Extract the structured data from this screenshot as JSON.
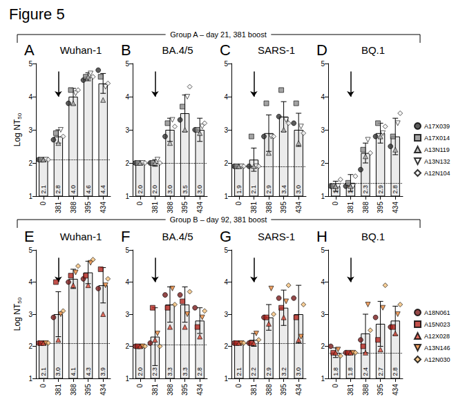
{
  "title": "Figure 5",
  "groups": [
    {
      "title": "Group A – day 21, 381 boost",
      "panels": [
        "A",
        "B",
        "C",
        "D"
      ]
    },
    {
      "title": "Group B – day 92, 381 boost",
      "panels": [
        "E",
        "F",
        "G",
        "H"
      ]
    }
  ],
  "chart_data": [
    {
      "type": "bar",
      "panel": "A",
      "title": "Wuhan-1",
      "y_label": "Log NT50",
      "categories": [
        "0",
        "381",
        "388",
        "395",
        "434"
      ],
      "values": [
        2.1,
        2.8,
        4.0,
        4.6,
        4.4
      ],
      "value_labels": [
        "2.1",
        "2.8",
        "4.0",
        "4.6",
        "4.4"
      ],
      "errors": [
        0.05,
        0.2,
        0.25,
        0.12,
        0.3
      ],
      "threshold": 2.1,
      "color": "#ebebeb",
      "ylim": [
        1,
        5
      ],
      "yticks": [
        1,
        2,
        3,
        4,
        5
      ],
      "grid": false,
      "data_labels": true,
      "legend": "right",
      "annotations": [
        {
          "type": "arrow",
          "x": "381"
        }
      ],
      "series": [
        {
          "name": "A17X039",
          "color": "#333333",
          "marker": "circle",
          "values": [
            2.1,
            2.7,
            3.8,
            4.5,
            4.8
          ]
        },
        {
          "name": "A17X014",
          "color": "#8c8c8c",
          "marker": "square",
          "values": [
            2.1,
            2.9,
            4.2,
            4.6,
            4.6
          ]
        },
        {
          "name": "A13N119",
          "color": "#b5b5b5",
          "marker": "triangle",
          "values": [
            2.1,
            2.6,
            3.8,
            4.6,
            3.9
          ]
        },
        {
          "name": "A13N132",
          "color": "#ffffff",
          "marker": "triangle-down",
          "values": [
            2.1,
            3.0,
            4.1,
            4.7,
            4.3
          ]
        },
        {
          "name": "A12N104",
          "color": "#f2f2f2",
          "marker": "diamond",
          "values": [
            2.1,
            2.8,
            4.2,
            4.6,
            4.4
          ]
        }
      ]
    },
    {
      "type": "bar",
      "panel": "B",
      "title": "BA.4/5",
      "categories": [
        "0",
        "381",
        "388",
        "395",
        "434"
      ],
      "values": [
        2.0,
        2.0,
        3.0,
        3.5,
        3.0
      ],
      "value_labels": [
        "2.0",
        "2.0",
        "3.0",
        "3.5",
        "3.0"
      ],
      "errors": [
        0.05,
        0.1,
        0.35,
        0.55,
        0.35
      ],
      "threshold": 2.0,
      "color": "#ebebeb",
      "ylim": [
        1,
        5
      ],
      "yticks": [
        1,
        2,
        3,
        4,
        5
      ],
      "grid": false,
      "data_labels": true,
      "legend": "right",
      "annotations": [
        {
          "type": "arrow",
          "x": "381"
        }
      ],
      "series": [
        {
          "name": "A17X039",
          "color": "#333333",
          "marker": "circle",
          "values": [
            2.0,
            2.0,
            2.8,
            3.3,
            3.0
          ]
        },
        {
          "name": "A17X014",
          "color": "#8c8c8c",
          "marker": "square",
          "values": [
            2.0,
            2.0,
            3.2,
            3.7,
            3.0
          ]
        },
        {
          "name": "A13N119",
          "color": "#b5b5b5",
          "marker": "triangle",
          "values": [
            2.0,
            2.0,
            2.6,
            3.0,
            2.9
          ]
        },
        {
          "name": "A13N132",
          "color": "#ffffff",
          "marker": "triangle-down",
          "values": [
            2.0,
            2.1,
            3.3,
            4.0,
            3.1
          ]
        },
        {
          "name": "A12N104",
          "color": "#f2f2f2",
          "marker": "diamond",
          "values": [
            2.0,
            2.0,
            3.1,
            4.3,
            3.2
          ]
        }
      ]
    },
    {
      "type": "bar",
      "panel": "C",
      "title": "SARS-1",
      "categories": [
        "0",
        "381",
        "388",
        "395",
        "434"
      ],
      "values": [
        1.9,
        2.1,
        2.9,
        3.4,
        3.0
      ],
      "value_labels": [
        "1.9",
        "2.1",
        "2.9",
        "3.4",
        "3.0"
      ],
      "errors": [
        0.05,
        0.35,
        0.55,
        0.45,
        0.5
      ],
      "threshold": 1.9,
      "color": "#ebebeb",
      "ylim": [
        1,
        5
      ],
      "yticks": [
        1,
        2,
        3,
        4,
        5
      ],
      "grid": false,
      "data_labels": true,
      "legend": "right",
      "annotations": [
        {
          "type": "arrow",
          "x": "381"
        }
      ],
      "series": [
        {
          "name": "A17X039",
          "color": "#333333",
          "marker": "circle",
          "values": [
            1.9,
            1.9,
            2.8,
            3.4,
            3.2
          ]
        },
        {
          "name": "A17X014",
          "color": "#8c8c8c",
          "marker": "square",
          "values": [
            1.9,
            2.8,
            3.8,
            4.2,
            3.8
          ]
        },
        {
          "name": "A13N119",
          "color": "#b5b5b5",
          "marker": "triangle",
          "values": [
            1.9,
            1.9,
            2.3,
            3.0,
            2.6
          ]
        },
        {
          "name": "A13N132",
          "color": "#ffffff",
          "marker": "triangle-down",
          "values": [
            1.9,
            1.9,
            2.8,
            3.3,
            3.1
          ]
        },
        {
          "name": "A12N104",
          "color": "#f2f2f2",
          "marker": "diamond",
          "values": [
            1.9,
            1.9,
            2.8,
            3.2,
            2.9
          ]
        }
      ]
    },
    {
      "type": "bar",
      "panel": "D",
      "title": "BQ.1",
      "categories": [
        "0",
        "381",
        "388",
        "395",
        "434"
      ],
      "values": [
        1.3,
        1.4,
        2.3,
        2.9,
        2.8
      ],
      "value_labels": [
        "1.3",
        "1.4",
        "2.3",
        "2.9",
        "2.8"
      ],
      "errors": [
        0.15,
        0.25,
        0.3,
        0.3,
        0.55
      ],
      "threshold": 1.4,
      "color": "#ebebeb",
      "ylim": [
        1,
        5
      ],
      "yticks": [
        1,
        2,
        3,
        4,
        5
      ],
      "grid": false,
      "data_labels": true,
      "legend": "right",
      "annotations": [
        {
          "type": "arrow",
          "x": "381"
        }
      ],
      "series": [
        {
          "name": "A17X039",
          "color": "#333333",
          "marker": "circle",
          "values": [
            1.3,
            1.3,
            1.8,
            2.8,
            2.5
          ]
        },
        {
          "name": "A17X014",
          "color": "#8c8c8c",
          "marker": "square",
          "values": [
            1.3,
            1.4,
            2.4,
            3.2,
            2.8
          ]
        },
        {
          "name": "A13N119",
          "color": "#b5b5b5",
          "marker": "triangle",
          "values": [
            1.3,
            1.3,
            2.2,
            2.8,
            2.4
          ]
        },
        {
          "name": "A13N132",
          "color": "#ffffff",
          "marker": "triangle-down",
          "values": [
            1.3,
            1.3,
            2.7,
            2.9,
            3.2
          ]
        },
        {
          "name": "A12N104",
          "color": "#f2f2f2",
          "marker": "diamond",
          "values": [
            1.5,
            1.6,
            2.3,
            3.1,
            3.5
          ]
        }
      ]
    },
    {
      "type": "bar",
      "panel": "E",
      "title": "Wuhan-1",
      "y_label": "Log NT50",
      "categories": [
        "0",
        "381",
        "388",
        "395",
        "434"
      ],
      "values": [
        2.1,
        3.0,
        4.1,
        4.3,
        3.9
      ],
      "value_labels": [
        "2.1",
        "3.0",
        "4.1",
        "4.3",
        "3.9"
      ],
      "errors": [
        0.05,
        0.7,
        0.3,
        0.35,
        0.55
      ],
      "threshold": 2.1,
      "color": "#ebebeb",
      "ylim": [
        1,
        5
      ],
      "yticks": [
        1,
        2,
        3,
        4,
        5
      ],
      "grid": false,
      "data_labels": true,
      "legend": "right",
      "annotations": [
        {
          "type": "arrow",
          "x": "381"
        }
      ],
      "series": [
        {
          "name": "A18N061",
          "color": "#7a1c1c",
          "marker": "circle",
          "values": [
            2.1,
            2.9,
            4.0,
            4.1,
            3.8
          ]
        },
        {
          "name": "A15N023",
          "color": "#b3261e",
          "marker": "square",
          "values": [
            2.1,
            4.0,
            4.2,
            4.2,
            4.4
          ]
        },
        {
          "name": "A12X028",
          "color": "#dd4b39",
          "marker": "triangle",
          "values": [
            2.1,
            2.2,
            3.9,
            3.9,
            3.0
          ]
        },
        {
          "name": "A13N146",
          "color": "#ec8a3c",
          "marker": "triangle-down",
          "values": [
            2.1,
            3.0,
            4.3,
            4.6,
            3.9
          ]
        },
        {
          "name": "A12N030",
          "color": "#f6c27a",
          "marker": "diamond",
          "values": [
            2.1,
            3.1,
            4.5,
            4.7,
            4.1
          ]
        }
      ]
    },
    {
      "type": "bar",
      "panel": "F",
      "title": "BA.4/5",
      "categories": [
        "0",
        "381",
        "388",
        "395",
        "434"
      ],
      "values": [
        2.0,
        2.3,
        3.3,
        3.3,
        2.8
      ],
      "value_labels": [
        "2.0",
        "2.3",
        "3.3",
        "3.3",
        "2.8"
      ],
      "errors": [
        0.05,
        0.9,
        0.55,
        0.55,
        0.4
      ],
      "threshold": 2.05,
      "color": "#ebebeb",
      "ylim": [
        1,
        5
      ],
      "yticks": [
        1,
        2,
        3,
        4,
        5
      ],
      "grid": false,
      "data_labels": true,
      "legend": "right",
      "annotations": [
        {
          "type": "arrow",
          "x": "381"
        }
      ],
      "series": [
        {
          "name": "A18N061",
          "color": "#7a1c1c",
          "marker": "circle",
          "values": [
            2.0,
            2.1,
            3.6,
            3.6,
            3.2
          ]
        },
        {
          "name": "A15N023",
          "color": "#b3261e",
          "marker": "square",
          "values": [
            2.0,
            3.2,
            3.2,
            3.4,
            2.6
          ]
        },
        {
          "name": "A12X028",
          "color": "#dd4b39",
          "marker": "triangle",
          "values": [
            2.0,
            2.2,
            2.6,
            2.6,
            2.3
          ]
        },
        {
          "name": "A13N146",
          "color": "#ec8a3c",
          "marker": "triangle-down",
          "values": [
            2.0,
            2.4,
            3.8,
            3.0,
            2.9
          ]
        },
        {
          "name": "A12N030",
          "color": "#f6c27a",
          "marker": "diamond",
          "values": [
            2.0,
            2.0,
            3.3,
            3.7,
            3.1
          ]
        }
      ]
    },
    {
      "type": "bar",
      "panel": "G",
      "title": "SARS-1",
      "categories": [
        "0",
        "381",
        "388",
        "395",
        "434"
      ],
      "values": [
        2.1,
        2.2,
        2.9,
        3.2,
        3.0
      ],
      "value_labels": [
        "2.1",
        "2.2",
        "2.9",
        "3.2",
        "3.0"
      ],
      "errors": [
        0.05,
        0.2,
        0.4,
        0.55,
        0.9
      ],
      "threshold": 2.1,
      "color": "#ebebeb",
      "ylim": [
        1,
        5
      ],
      "yticks": [
        1,
        2,
        3,
        4,
        5
      ],
      "grid": false,
      "data_labels": true,
      "legend": "right",
      "annotations": [
        {
          "type": "arrow",
          "x": "381"
        }
      ],
      "series": [
        {
          "name": "A18N061",
          "color": "#7a1c1c",
          "marker": "circle",
          "values": [
            2.1,
            2.1,
            2.9,
            3.5,
            3.5
          ]
        },
        {
          "name": "A15N023",
          "color": "#b3261e",
          "marker": "square",
          "values": [
            2.1,
            2.1,
            2.9,
            3.2,
            2.9
          ]
        },
        {
          "name": "A12X028",
          "color": "#dd4b39",
          "marker": "triangle",
          "values": [
            2.1,
            2.1,
            2.7,
            2.9,
            2.2
          ]
        },
        {
          "name": "A13N146",
          "color": "#ec8a3c",
          "marker": "triangle-down",
          "values": [
            2.1,
            2.4,
            3.8,
            3.4,
            2.3
          ]
        },
        {
          "name": "A12N030",
          "color": "#f6c27a",
          "marker": "diamond",
          "values": [
            2.1,
            2.2,
            3.0,
            3.9,
            3.3
          ]
        }
      ]
    },
    {
      "type": "bar",
      "panel": "H",
      "title": "BQ.1",
      "categories": [
        "0",
        "381",
        "388",
        "395",
        "434"
      ],
      "values": [
        1.8,
        1.8,
        2.4,
        2.7,
        2.8
      ],
      "value_labels": [
        "1.8",
        "1.8",
        "2.4",
        "2.7",
        "2.8"
      ],
      "errors": [
        0.15,
        0.05,
        0.6,
        0.7,
        0.45
      ],
      "threshold": 1.8,
      "color": "#ebebeb",
      "ylim": [
        1,
        5
      ],
      "yticks": [
        1,
        2,
        3,
        4,
        5
      ],
      "grid": false,
      "data_labels": true,
      "legend": "right",
      "annotations": [
        {
          "type": "arrow",
          "x": "381"
        }
      ],
      "series": [
        {
          "name": "A18N061",
          "color": "#7a1c1c",
          "marker": "circle",
          "values": [
            2.0,
            1.8,
            2.2,
            2.9,
            2.6
          ]
        },
        {
          "name": "A15N023",
          "color": "#b3261e",
          "marker": "square",
          "values": [
            1.8,
            1.8,
            2.0,
            2.2,
            2.6
          ]
        },
        {
          "name": "A12X028",
          "color": "#dd4b39",
          "marker": "triangle",
          "values": [
            1.8,
            1.8,
            1.8,
            1.9,
            2.4
          ]
        },
        {
          "name": "A13N146",
          "color": "#ec8a3c",
          "marker": "triangle-down",
          "values": [
            1.9,
            1.8,
            3.3,
            3.2,
            3.0
          ]
        },
        {
          "name": "A12N030",
          "color": "#f6c27a",
          "marker": "diamond",
          "values": [
            1.7,
            1.8,
            2.5,
            3.9,
            3.3
          ]
        }
      ]
    }
  ]
}
